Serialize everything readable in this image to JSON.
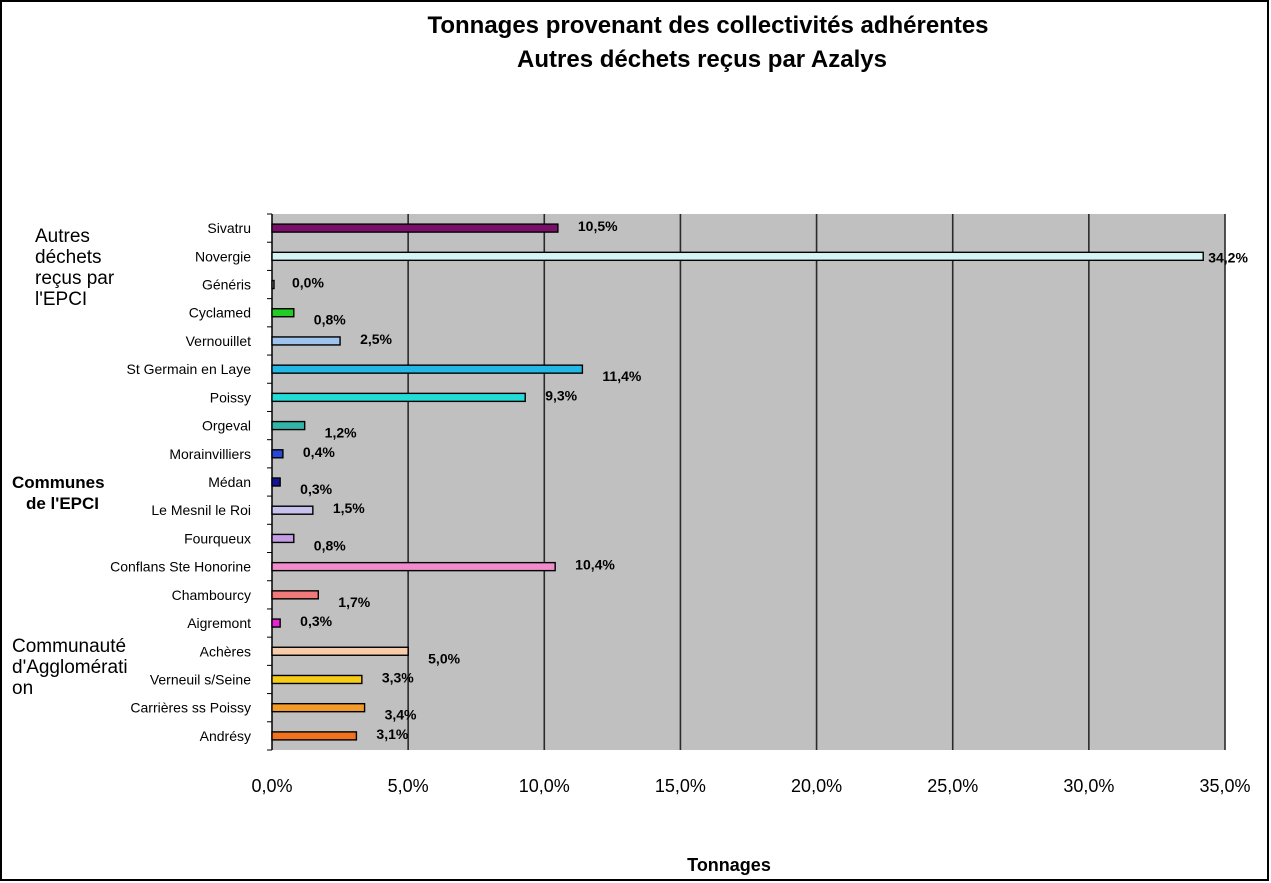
{
  "chart_data": {
    "type": "bar",
    "orientation": "horizontal",
    "title": "Tonnages provenant des collectivités adhérentes",
    "subtitle": "Autres déchets reçus par Azalys",
    "xlabel": "Tonnages",
    "xlim": [
      0,
      35
    ],
    "xticks": [
      "0,0%",
      "5,0%",
      "10,0%",
      "15,0%",
      "20,0%",
      "25,0%",
      "30,0%",
      "35,0%"
    ],
    "grid": true,
    "categories": [
      "Sivatru",
      "Novergie",
      "Généris",
      "Cyclamed",
      "Vernouillet",
      "St Germain en Laye",
      "Poissy",
      "Orgeval",
      "Morainvilliers",
      "Médan",
      "Le Mesnil le Roi",
      "Fourqueux",
      "Conflans Ste Honorine",
      "Chambourcy",
      "Aigremont",
      "Achères",
      "Verneuil s/Seine",
      "Carrières ss Poissy",
      "Andrésy"
    ],
    "values": [
      10.5,
      34.2,
      0.0,
      0.8,
      2.5,
      11.4,
      9.3,
      1.2,
      0.4,
      0.3,
      1.5,
      0.8,
      10.4,
      1.7,
      0.3,
      5.0,
      3.3,
      3.4,
      3.1
    ],
    "labels": [
      "10,5%",
      "34,2%",
      "0,0%",
      "0,8%",
      "2,5%",
      "11,4%",
      "9,3%",
      "1,2%",
      "0,4%",
      "0,3%",
      "1,5%",
      "0,8%",
      "10,4%",
      "1,7%",
      "0,3%",
      "5,0%",
      "3,3%",
      "3,4%",
      "3,1%"
    ],
    "colors": [
      "#7a0f6a",
      "#d4f4f6",
      "#9a9a9a",
      "#22cc22",
      "#9ec4ee",
      "#22b8e6",
      "#22dcd8",
      "#33b4a8",
      "#2a48d8",
      "#14149a",
      "#c6c2ee",
      "#c49ce6",
      "#f08ccc",
      "#f07a7a",
      "#e624d2",
      "#f6ccaa",
      "#f6cc14",
      "#f49a2a",
      "#f0721e"
    ],
    "groups": [
      {
        "lines": [
          "Autres",
          "déchets",
          "reçus par",
          "l'EPCI"
        ]
      },
      {
        "lines": [
          "Communes",
          "de  l'EPCI"
        ]
      },
      {
        "lines": [
          "Communauté",
          "d'Agglomérati",
          "on"
        ]
      }
    ]
  }
}
